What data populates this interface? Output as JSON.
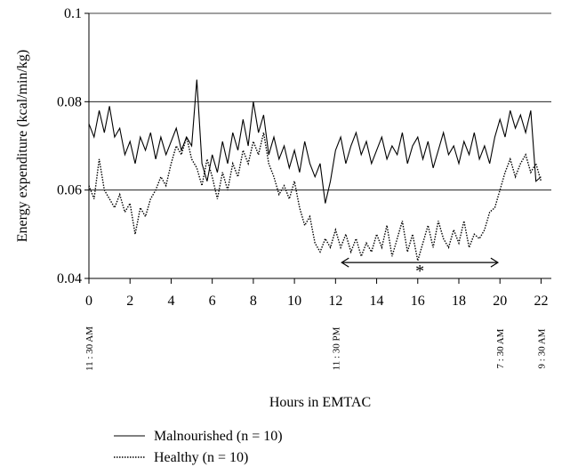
{
  "chart_data": {
    "type": "line",
    "y_label": "Energy expenditure (kcal/min/kg)",
    "x_label": "Hours in EMTAC",
    "x": [
      0,
      0.25,
      0.5,
      0.75,
      1,
      1.25,
      1.5,
      1.75,
      2,
      2.25,
      2.5,
      2.75,
      3,
      3.25,
      3.5,
      3.75,
      4,
      4.25,
      4.5,
      4.75,
      5,
      5.25,
      5.5,
      5.75,
      6,
      6.25,
      6.5,
      6.75,
      7,
      7.25,
      7.5,
      7.75,
      8,
      8.25,
      8.5,
      8.75,
      9,
      9.25,
      9.5,
      9.75,
      10,
      10.25,
      10.5,
      10.75,
      11,
      11.25,
      11.5,
      11.75,
      12,
      12.25,
      12.5,
      12.75,
      13,
      13.25,
      13.5,
      13.75,
      14,
      14.25,
      14.5,
      14.75,
      15,
      15.25,
      15.5,
      15.75,
      16,
      16.25,
      16.5,
      16.75,
      17,
      17.25,
      17.5,
      17.75,
      18,
      18.25,
      18.5,
      18.75,
      19,
      19.25,
      19.5,
      19.75,
      20,
      20.25,
      20.5,
      20.75,
      21,
      21.25,
      21.5,
      21.75,
      22
    ],
    "series": [
      {
        "name": "Malnourished (n = 10)",
        "color": "#000000",
        "style": "solid",
        "values": [
          0.075,
          0.072,
          0.078,
          0.073,
          0.079,
          0.072,
          0.074,
          0.068,
          0.071,
          0.066,
          0.072,
          0.069,
          0.073,
          0.067,
          0.072,
          0.068,
          0.071,
          0.074,
          0.069,
          0.072,
          0.07,
          0.085,
          0.066,
          0.062,
          0.068,
          0.064,
          0.071,
          0.066,
          0.073,
          0.069,
          0.076,
          0.07,
          0.08,
          0.073,
          0.077,
          0.068,
          0.072,
          0.067,
          0.07,
          0.065,
          0.069,
          0.064,
          0.071,
          0.066,
          0.063,
          0.066,
          0.057,
          0.062,
          0.069,
          0.072,
          0.066,
          0.07,
          0.073,
          0.068,
          0.071,
          0.066,
          0.069,
          0.072,
          0.067,
          0.07,
          0.068,
          0.073,
          0.066,
          0.07,
          0.072,
          0.067,
          0.071,
          0.065,
          0.069,
          0.073,
          0.068,
          0.07,
          0.066,
          0.071,
          0.068,
          0.073,
          0.067,
          0.07,
          0.066,
          0.072,
          0.076,
          0.072,
          0.078,
          0.074,
          0.077,
          0.073,
          0.078,
          0.062,
          0.063
        ]
      },
      {
        "name": "Healthy (n = 10)",
        "color": "#000000",
        "style": "dotted",
        "values": [
          0.061,
          0.058,
          0.067,
          0.06,
          0.058,
          0.056,
          0.059,
          0.055,
          0.057,
          0.05,
          0.056,
          0.054,
          0.058,
          0.06,
          0.063,
          0.061,
          0.066,
          0.07,
          0.068,
          0.072,
          0.067,
          0.065,
          0.061,
          0.067,
          0.063,
          0.058,
          0.064,
          0.06,
          0.066,
          0.063,
          0.069,
          0.066,
          0.071,
          0.068,
          0.073,
          0.066,
          0.063,
          0.059,
          0.061,
          0.058,
          0.062,
          0.056,
          0.052,
          0.054,
          0.048,
          0.046,
          0.049,
          0.047,
          0.051,
          0.047,
          0.05,
          0.046,
          0.049,
          0.045,
          0.048,
          0.046,
          0.05,
          0.047,
          0.052,
          0.045,
          0.049,
          0.053,
          0.046,
          0.05,
          0.044,
          0.048,
          0.052,
          0.047,
          0.053,
          0.049,
          0.047,
          0.051,
          0.048,
          0.053,
          0.047,
          0.05,
          0.049,
          0.051,
          0.055,
          0.056,
          0.06,
          0.064,
          0.067,
          0.063,
          0.066,
          0.068,
          0.064,
          0.066,
          0.062
        ]
      }
    ],
    "xlim": [
      0,
      22.5
    ],
    "xticks": [
      0,
      2,
      4,
      6,
      8,
      10,
      12,
      14,
      16,
      18,
      20,
      22
    ],
    "ylim": [
      0.04,
      0.1
    ],
    "yticks": [
      0.04,
      0.06,
      0.08,
      0.1
    ],
    "grid": true,
    "legend": "bottom-left",
    "annotations": [
      {
        "text": "11 : 30 AM",
        "x": 0
      },
      {
        "text": "11 : 30 PM",
        "x": 12
      },
      {
        "text": "7 : 30 AM",
        "x": 20
      },
      {
        "text": "9 : 30 AM",
        "x": 22
      }
    ],
    "bracket": {
      "text": "*",
      "x": [
        12.3,
        19.9
      ],
      "y": 0.0436
    }
  }
}
